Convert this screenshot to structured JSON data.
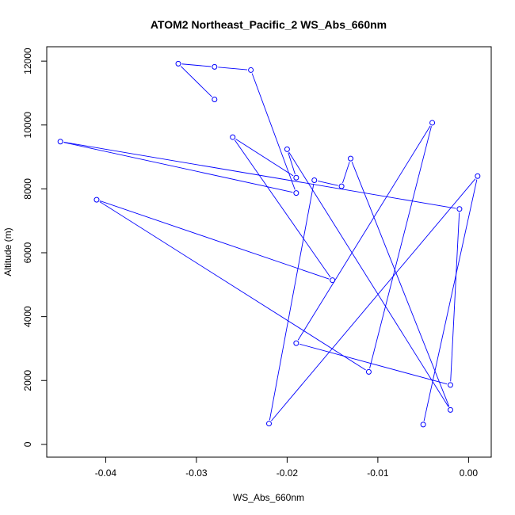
{
  "chart_data": {
    "type": "line",
    "title": "ATOM2 Northeast_Pacific_2 WS_Abs_660nm",
    "xlabel": "WS_Abs_660nm",
    "ylabel": "Altitude (m)",
    "xlim": [
      -0.0465,
      0.0025
    ],
    "ylim": [
      -400,
      12450
    ],
    "xticks": [
      -0.04,
      -0.03,
      -0.02,
      -0.01,
      0.0
    ],
    "xtick_labels": [
      "-0.04",
      "-0.03",
      "-0.02",
      "-0.01",
      "0.00"
    ],
    "yticks": [
      0,
      2000,
      4000,
      6000,
      8000,
      10000,
      12000
    ],
    "ytick_labels": [
      "0",
      "2000",
      "4000",
      "6000",
      "8000",
      "10000",
      "12000"
    ],
    "grid": false,
    "legend": "none",
    "line_style": "line with open circle markers",
    "series": [
      {
        "color": "#0000ff",
        "points": [
          {
            "x": -0.028,
            "y": 10800
          },
          {
            "x": -0.032,
            "y": 11920
          },
          {
            "x": -0.028,
            "y": 11820
          },
          {
            "x": -0.024,
            "y": 11720
          },
          {
            "x": -0.019,
            "y": 7870
          },
          {
            "x": -0.045,
            "y": 9480
          },
          {
            "x": -0.001,
            "y": 7370
          },
          {
            "x": -0.002,
            "y": 1860
          },
          {
            "x": -0.019,
            "y": 3170
          },
          {
            "x": -0.004,
            "y": 10070
          },
          {
            "x": -0.011,
            "y": 2270
          },
          {
            "x": -0.041,
            "y": 7660
          },
          {
            "x": -0.015,
            "y": 5140
          },
          {
            "x": -0.026,
            "y": 9620
          },
          {
            "x": -0.019,
            "y": 8350
          },
          {
            "x": -0.02,
            "y": 9240
          },
          {
            "x": -0.002,
            "y": 1080
          },
          {
            "x": -0.013,
            "y": 8950
          },
          {
            "x": -0.014,
            "y": 8080
          },
          {
            "x": -0.017,
            "y": 8270
          },
          {
            "x": -0.022,
            "y": 650
          },
          {
            "x": 0.001,
            "y": 8400
          },
          {
            "x": -0.005,
            "y": 620
          }
        ]
      }
    ]
  }
}
